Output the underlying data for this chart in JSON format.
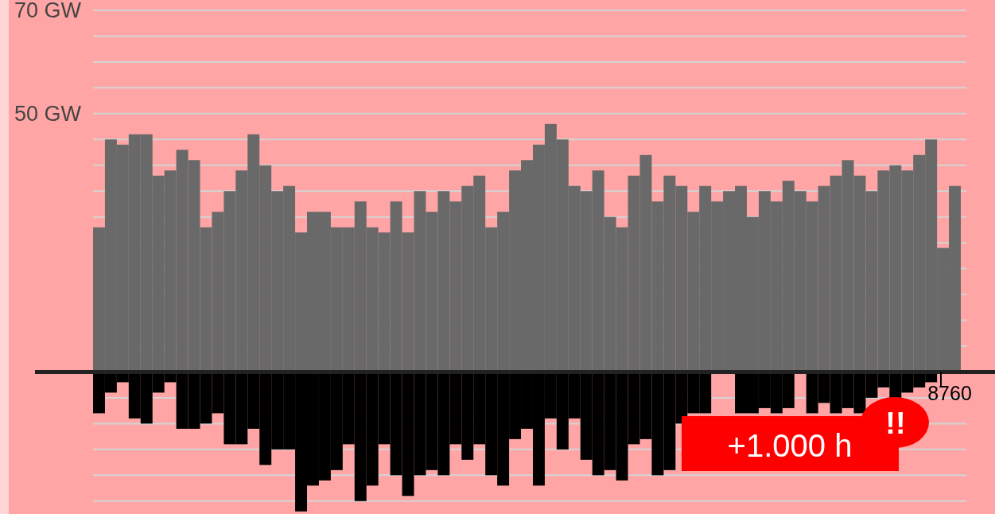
{
  "chart_data": {
    "type": "bar",
    "categories": [
      null,
      null,
      null,
      null,
      null,
      null,
      null,
      null,
      null,
      null,
      null,
      null,
      null,
      null,
      null,
      null,
      null,
      null,
      null,
      null,
      null,
      null,
      null,
      null,
      null,
      null,
      null,
      null,
      null,
      null,
      null,
      null,
      null,
      null,
      null,
      null,
      null,
      null,
      null,
      null,
      null,
      null,
      null,
      null,
      null,
      null,
      null,
      null,
      null,
      null,
      null,
      null,
      null,
      null,
      null,
      null,
      null,
      null,
      null,
      null,
      null,
      null,
      null,
      null,
      null,
      null,
      null,
      null,
      null,
      null,
      null,
      null,
      null
    ],
    "series": [
      {
        "color": "#696969",
        "values": [
          28,
          45,
          44,
          46,
          46,
          38,
          39,
          43,
          41,
          28,
          31,
          35,
          39,
          46,
          40,
          35,
          36,
          27,
          31,
          31,
          28,
          28,
          33,
          28,
          27,
          33,
          27,
          35,
          31,
          35,
          33,
          36,
          38,
          28,
          31,
          39,
          41,
          44,
          48,
          45,
          36,
          35,
          39,
          30,
          28,
          38,
          42,
          33,
          38,
          36,
          31,
          36,
          33,
          35,
          36,
          30,
          35,
          33,
          37,
          35,
          33,
          36,
          38,
          41,
          38,
          35,
          39,
          40,
          39,
          42,
          45,
          24,
          36
        ]
      },
      {
        "color": "#000000",
        "values": [
          -8,
          -4,
          -2,
          -9,
          -10,
          -4,
          -2,
          -11,
          -11,
          -10,
          -8,
          -14,
          -14,
          -11,
          -18,
          -15,
          -15,
          -27,
          -22,
          -21,
          -19,
          -14,
          -25,
          -22,
          -14,
          -20,
          -24,
          -20,
          -19,
          -20,
          -14,
          -17,
          -14,
          -20,
          -22,
          -13,
          -11,
          -22,
          -9,
          -15,
          -9,
          -17,
          -20,
          -19,
          -21,
          -14,
          -13,
          -20,
          -19,
          -10,
          -8,
          -8,
          null,
          null,
          -8,
          -8,
          -7,
          -8,
          -7,
          null,
          -8,
          -6,
          -8,
          -7,
          -8,
          -5,
          -3,
          -5,
          -4,
          -3,
          -2,
          null,
          null
        ]
      }
    ],
    "ylim": [
      -27.5,
      72
    ],
    "yticks": [
      {
        "value": -25,
        "label": null
      },
      {
        "value": -20,
        "label": null
      },
      {
        "value": -15,
        "label": null
      },
      {
        "value": -10,
        "label": null
      },
      {
        "value": -5,
        "label": null
      },
      {
        "value": 5,
        "label": null
      },
      {
        "value": 10,
        "label": null
      },
      {
        "value": 15,
        "label": null
      },
      {
        "value": 20,
        "label": null
      },
      {
        "value": 25,
        "label": null
      },
      {
        "value": 30,
        "label": null
      },
      {
        "value": 35,
        "label": null
      },
      {
        "value": 40,
        "label": null
      },
      {
        "value": 45,
        "label": null
      },
      {
        "value": 50,
        "label": "50 GW"
      },
      {
        "value": 55,
        "label": null
      },
      {
        "value": 60,
        "label": null
      },
      {
        "value": 65,
        "label": null
      },
      {
        "value": 70,
        "label": "70 GW"
      }
    ],
    "grid": "y",
    "stacked": true,
    "annotations": [
      "8760",
      "+1.000 h",
      "!!"
    ]
  }
}
